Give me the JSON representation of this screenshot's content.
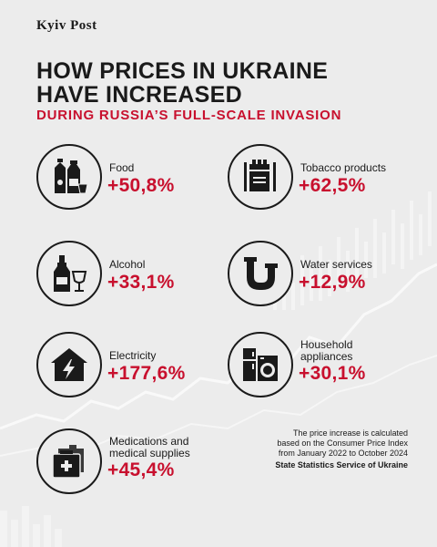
{
  "brand": "Kyiv Post",
  "title_line1": "HOW PRICES IN UKRAINE",
  "title_line2": "HAVE INCREASED",
  "subtitle": "DURING RUSSIA’S FULL-SCALE INVASION",
  "items": [
    {
      "label": "Food",
      "value": "+50,8%",
      "icon": "food-icon"
    },
    {
      "label": "Tobacco products",
      "value": "+62,5%",
      "icon": "cigarettes-icon"
    },
    {
      "label": "Alcohol",
      "value": "+33,1%",
      "icon": "bottle-glass-icon"
    },
    {
      "label": "Water services",
      "value": "+12,9%",
      "icon": "pipe-icon"
    },
    {
      "label": "Electricity",
      "value": "+177,6%",
      "icon": "house-bolt-icon"
    },
    {
      "label_line1": "Household",
      "label_line2": "appliances",
      "value": "+30,1%",
      "icon": "appliances-icon"
    },
    {
      "label_line1": "Medications and",
      "label_line2": "medical supplies",
      "value": "+45,4%",
      "icon": "medical-kit-icon"
    }
  ],
  "note_line1": "The price increase is calculated",
  "note_line2": "based on the Consumer Price Index",
  "note_line3": "from January 2022 to October 2024",
  "source": "State Statistics Service of Ukraine",
  "colors": {
    "accent": "#c8102e",
    "text": "#1a1a1a",
    "background": "#ececec"
  }
}
